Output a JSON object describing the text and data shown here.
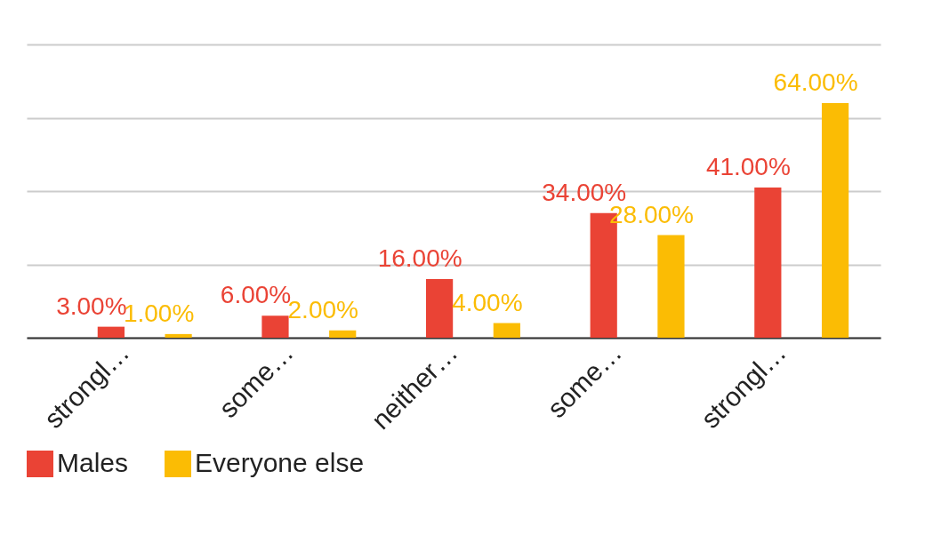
{
  "chart_data": {
    "type": "bar",
    "categories": [
      "strongl…",
      "some…",
      "neither…",
      "some…",
      "strongl…"
    ],
    "series": [
      {
        "name": "Males",
        "color": "#ea4335",
        "values": [
          3,
          6,
          16,
          34,
          41
        ],
        "value_labels": [
          "3.00%",
          "6.00%",
          "16.00%",
          "34.00%",
          "41.00%"
        ]
      },
      {
        "name": "Everyone else",
        "color": "#fbbc04",
        "values": [
          1,
          2,
          4,
          28,
          64
        ],
        "value_labels": [
          "1.00%",
          "2.00%",
          "4.00%",
          "28.00%",
          "64.00%"
        ]
      }
    ],
    "ylim": [
      0,
      80
    ],
    "yticks": [
      {
        "value": 0,
        "label": null
      },
      {
        "value": 20,
        "label": null
      },
      {
        "value": 40,
        "label": null
      },
      {
        "value": 60,
        "label": null
      },
      {
        "value": 80,
        "label": null
      }
    ],
    "grid": "y",
    "tick_labels": "x",
    "legend": "bottom"
  }
}
